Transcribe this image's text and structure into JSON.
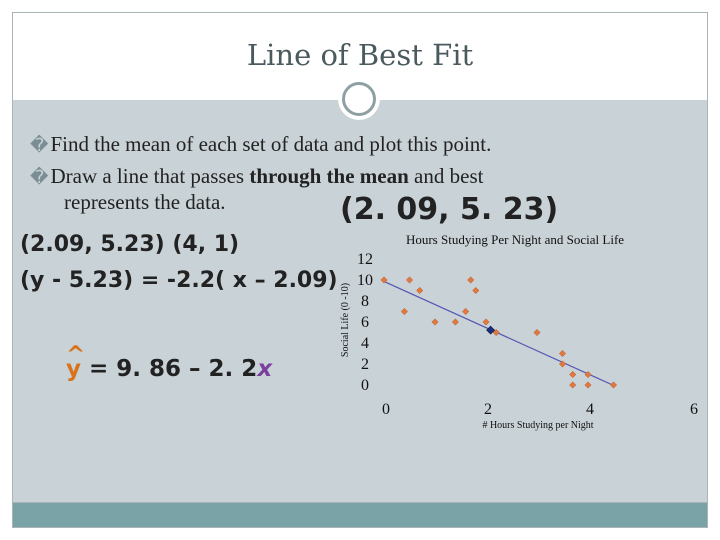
{
  "slide": {
    "title": "Line of Best Fit",
    "bullets": [
      {
        "mark": "�",
        "text": "Find the mean of each set of data and plot this point."
      },
      {
        "mark": "�",
        "pre": "Draw a line that passes ",
        "bold": "through the mean",
        "post": " and best",
        "cont": "represents the data."
      }
    ],
    "mean_point_label": "(2. 09, 5. 23)",
    "equations": {
      "points": "(2.09, 5.23) (4, 1)",
      "point_slope": "(y - 5.23) = -2.2( x – 2.09)",
      "regression_y": "y",
      "regression_hat": "^",
      "regression_mid": " =  9. 86 – 2. 2",
      "regression_x": "x"
    },
    "colors": {
      "background": "#c9d2d6",
      "footer": "#7aa3a8",
      "points": "#e07840",
      "line": "#5555b5",
      "mean_point": "#1a2f7a"
    }
  },
  "chart_data": {
    "type": "scatter",
    "title": "Hours Studying Per Night and Social Life",
    "xlabel": "# Hours Studying per Night",
    "ylabel": "Social Life (0 -10)",
    "xlim": [
      0,
      6
    ],
    "ylim": [
      0,
      12
    ],
    "xticks": [
      "0",
      "2",
      "4",
      "6"
    ],
    "yticks": [
      "12",
      "10",
      "8",
      "6",
      "4",
      "2",
      "0"
    ],
    "grid": false,
    "series": [
      {
        "x": [
          0,
          0.4,
          0.5,
          0.7,
          1.0,
          1.4,
          1.6,
          1.7,
          1.8,
          2.0,
          2.2,
          3.0,
          3.5,
          3.5,
          3.7,
          3.7,
          4.0,
          4.0,
          4.5
        ],
        "y": [
          10,
          7,
          10,
          9,
          6,
          6,
          7,
          10,
          9,
          6,
          5,
          5,
          3,
          2,
          1,
          0,
          1,
          0,
          0
        ]
      }
    ],
    "mean_point": {
      "x": 2.09,
      "y": 5.23
    },
    "fit_line": {
      "intercept": 9.86,
      "slope": -2.2,
      "x_range": [
        0,
        4.45
      ]
    }
  }
}
